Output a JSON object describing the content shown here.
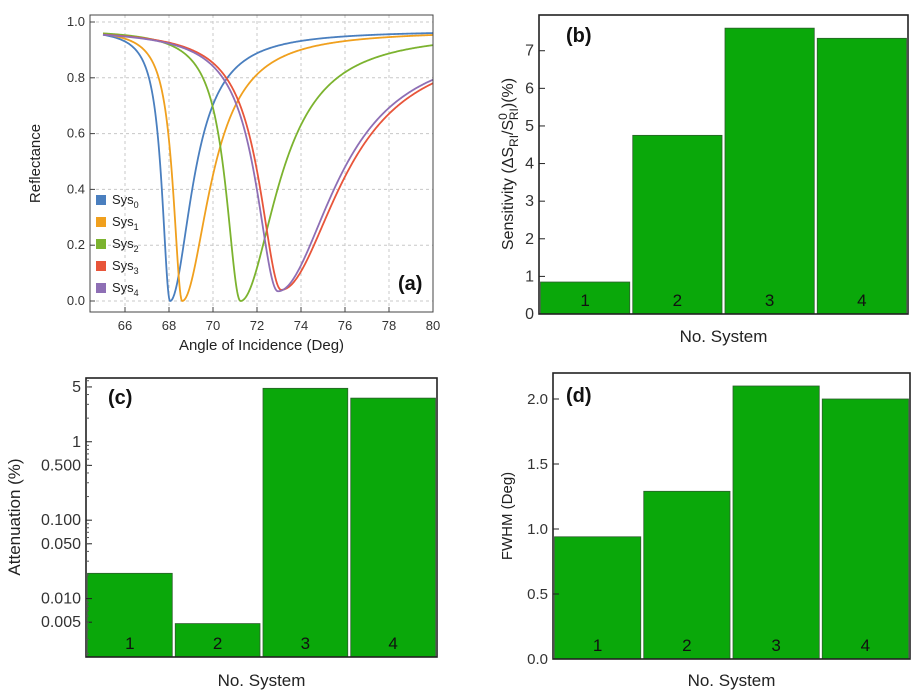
{
  "chart_data": [
    {
      "id": "a",
      "type": "line",
      "panel_label": "(a)",
      "xlabel": "Angle of Incidence (Deg)",
      "ylabel": "Reflectance",
      "xlim": [
        65,
        80
      ],
      "ylim": [
        0,
        1.0
      ],
      "xticks": [
        "66",
        "68",
        "70",
        "72",
        "74",
        "76",
        "78",
        "80"
      ],
      "yticks": [
        "0.0",
        "0.2",
        "0.4",
        "0.6",
        "0.8",
        "1.0"
      ],
      "grid": true,
      "legend_position": "bottom-left",
      "series": [
        {
          "name": "Sys",
          "sub": "0",
          "color": "#4a7fbf",
          "min_x": 68.05,
          "min_y": 0.0,
          "right_width": 1.2,
          "left_width": 0.45,
          "depth_base": 0.975,
          "far_right": 0.97
        },
        {
          "name": "Sys",
          "sub": "1",
          "color": "#f0a01e",
          "min_x": 68.6,
          "min_y": 0.0,
          "right_width": 1.5,
          "left_width": 0.5,
          "depth_base": 0.975,
          "far_right": 0.97
        },
        {
          "name": "Sys",
          "sub": "2",
          "color": "#7cb32f",
          "min_x": 71.25,
          "min_y": 0.0,
          "right_width": 2.0,
          "left_width": 0.8,
          "depth_base": 0.975,
          "far_right": 0.965
        },
        {
          "name": "Sys",
          "sub": "3",
          "color": "#e8553a",
          "min_x": 73.1,
          "min_y": 0.04,
          "right_width": 3.2,
          "left_width": 1.2,
          "depth_base": 0.975,
          "far_right": 0.94
        },
        {
          "name": "Sys",
          "sub": "4",
          "color": "#8e6fb5",
          "min_x": 72.95,
          "min_y": 0.035,
          "right_width": 3.1,
          "left_width": 1.2,
          "depth_base": 0.975,
          "far_right": 0.94
        }
      ]
    },
    {
      "id": "b",
      "type": "bar",
      "panel_label": "(b)",
      "xlabel": "No. System",
      "ylabel_prefix": "Sensitivity (ΔS",
      "ylabel_sub1": "RI",
      "ylabel_mid": "/S",
      "ylabel_sup": "0",
      "ylabel_sub2": "RI",
      "ylabel_suffix": ")(%)",
      "categories": [
        "1",
        "2",
        "3",
        "4"
      ],
      "values": [
        0.85,
        4.75,
        7.6,
        7.33
      ],
      "ylim": [
        0,
        7.95
      ],
      "yticks": [
        "0",
        "1",
        "2",
        "3",
        "4",
        "5",
        "6",
        "7"
      ],
      "color": "#0aa80a"
    },
    {
      "id": "c",
      "type": "bar",
      "scale": "log",
      "panel_label": "(c)",
      "xlabel": "No. System",
      "ylabel": "Attenuation (%)",
      "categories": [
        "1",
        "2",
        "3",
        "4"
      ],
      "values": [
        0.021,
        0.0048,
        4.8,
        3.6
      ],
      "ylim": [
        0.0018,
        6.5
      ],
      "yticks": [
        "0.005",
        "0.010",
        "0.050",
        "0.100",
        "0.500",
        "1",
        "5"
      ],
      "color": "#0aa80a"
    },
    {
      "id": "d",
      "type": "bar",
      "panel_label": "(d)",
      "xlabel": "No. System",
      "ylabel": "FWHM (Deg)",
      "categories": [
        "1",
        "2",
        "3",
        "4"
      ],
      "values": [
        0.94,
        1.29,
        2.1,
        2.0
      ],
      "ylim": [
        0,
        2.2
      ],
      "yticks": [
        "0.0",
        "0.5",
        "1.0",
        "1.5",
        "2.0"
      ],
      "color": "#0aa80a"
    }
  ]
}
